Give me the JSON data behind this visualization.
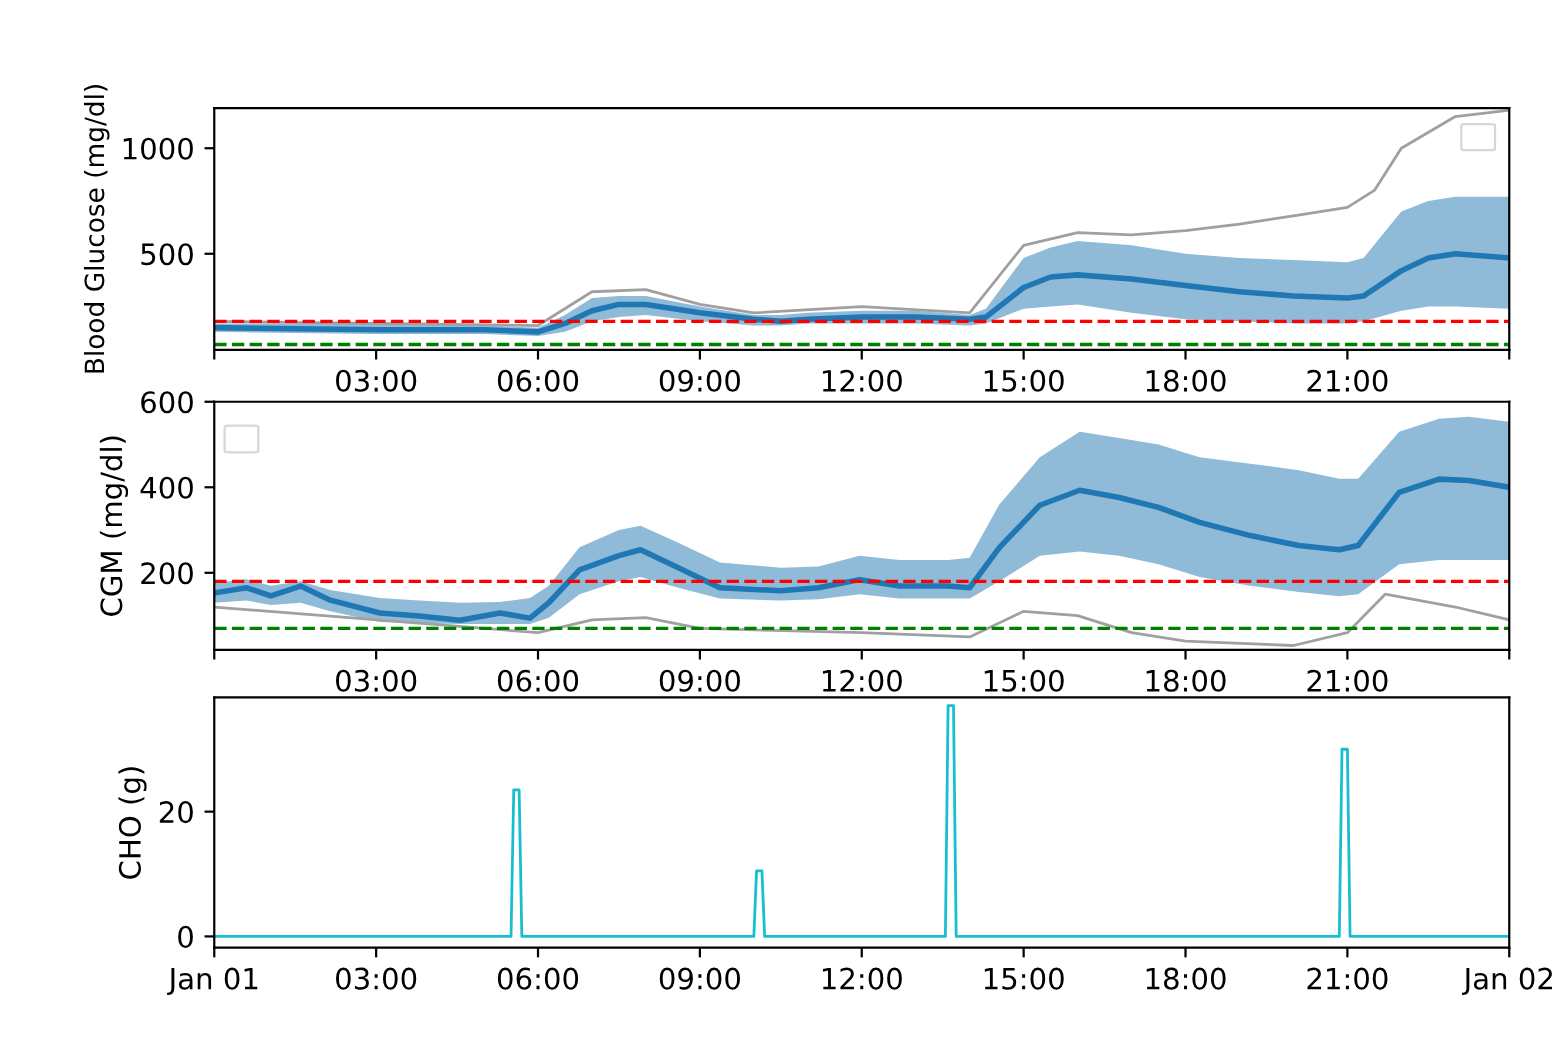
{
  "chart_data": [
    {
      "type": "line",
      "ylabel": "Blood Glucose (mg/dl)",
      "xlim": [
        0,
        24
      ],
      "ylim": [
        45,
        1190
      ],
      "yticks": [
        500,
        1000
      ],
      "xticks": [
        {
          "value": 0,
          "label": null
        },
        {
          "value": 3,
          "label": "03:00"
        },
        {
          "value": 6,
          "label": "06:00"
        },
        {
          "value": 9,
          "label": "09:00"
        },
        {
          "value": 12,
          "label": "12:00"
        },
        {
          "value": 15,
          "label": "15:00"
        },
        {
          "value": 18,
          "label": "18:00"
        },
        {
          "value": 21,
          "label": "21:00"
        },
        {
          "value": 24,
          "label": null
        }
      ],
      "grid": false,
      "ref_lines": [
        {
          "axis": "y",
          "value": 180,
          "color": "#ff0000",
          "line_style": "dashed"
        },
        {
          "axis": "y",
          "value": 70,
          "color": "#008000",
          "line_style": "dashed"
        }
      ],
      "series": [
        {
          "color": "#a0a0a0",
          "x": [
            0,
            6,
            7,
            8,
            9,
            10,
            12,
            14,
            15,
            16,
            17,
            18,
            19,
            20,
            21,
            21.5,
            22,
            23,
            24
          ],
          "values": [
            180,
            160,
            320,
            330,
            260,
            220,
            250,
            220,
            540,
            600,
            590,
            610,
            640,
            680,
            720,
            800,
            1000,
            1150,
            1180
          ]
        },
        {
          "color": "#1f77b4",
          "x": [
            0,
            3,
            5,
            6,
            6.5,
            7,
            7.5,
            8,
            9,
            10,
            10.5,
            11,
            12,
            13,
            14,
            14.3,
            15,
            15.5,
            16,
            17,
            18,
            19,
            20,
            21,
            21.3,
            22,
            22.5,
            23,
            24
          ],
          "values": [
            150,
            140,
            140,
            130,
            170,
            230,
            260,
            260,
            220,
            190,
            180,
            190,
            200,
            200,
            190,
            200,
            340,
            390,
            400,
            380,
            350,
            320,
            300,
            290,
            300,
            420,
            480,
            500,
            480
          ],
          "lower": [
            130,
            120,
            120,
            110,
            130,
            180,
            200,
            210,
            180,
            160,
            160,
            170,
            170,
            170,
            160,
            170,
            240,
            250,
            260,
            220,
            190,
            180,
            170,
            170,
            180,
            230,
            250,
            250,
            240
          ],
          "upper": [
            170,
            170,
            160,
            150,
            210,
            290,
            300,
            300,
            250,
            210,
            210,
            220,
            230,
            230,
            210,
            240,
            480,
            530,
            560,
            540,
            500,
            480,
            470,
            460,
            480,
            700,
            750,
            770,
            770
          ]
        }
      ]
    },
    {
      "type": "line",
      "ylabel": "CGM (mg/dl)",
      "xlim": [
        0,
        24
      ],
      "ylim": [
        20,
        600
      ],
      "yticks": [
        200,
        400,
        600
      ],
      "xticks": [
        {
          "value": 0,
          "label": null
        },
        {
          "value": 3,
          "label": "03:00"
        },
        {
          "value": 6,
          "label": "06:00"
        },
        {
          "value": 9,
          "label": "09:00"
        },
        {
          "value": 12,
          "label": "12:00"
        },
        {
          "value": 15,
          "label": "15:00"
        },
        {
          "value": 18,
          "label": "18:00"
        },
        {
          "value": 21,
          "label": "21:00"
        },
        {
          "value": 24,
          "label": null
        }
      ],
      "grid": false,
      "ref_lines": [
        {
          "axis": "y",
          "value": 180,
          "color": "#ff0000",
          "line_style": "dashed"
        },
        {
          "axis": "y",
          "value": 70,
          "color": "#008000",
          "line_style": "dashed"
        }
      ],
      "series": [
        {
          "color": "#a0a0a0",
          "x": [
            0,
            6,
            7,
            8,
            9,
            12,
            14,
            15,
            16,
            17,
            18,
            20,
            21,
            21.7,
            23,
            24
          ],
          "values": [
            120,
            60,
            90,
            95,
            70,
            60,
            50,
            110,
            100,
            60,
            40,
            30,
            60,
            150,
            120,
            90
          ]
        },
        {
          "color": "#1f77b4",
          "x": [
            0,
            0.6,
            1.05,
            1.6,
            2.15,
            3.07,
            3.8,
            4.55,
            5.3,
            5.85,
            6.2,
            6.77,
            7.5,
            7.9,
            8.6,
            9.37,
            10.5,
            11.2,
            11.96,
            12.7,
            13.6,
            14,
            14.55,
            15.3,
            16.04,
            16.77,
            17.5,
            18.26,
            19.2,
            20.1,
            20.85,
            21.2,
            21.96,
            22.7,
            23.25,
            24
          ],
          "values": [
            153,
            165,
            146,
            169,
            136,
            106,
            99,
            89,
            106,
            94,
            130,
            207,
            240,
            254,
            212,
            165,
            158,
            165,
            184,
            169,
            169,
            165,
            259,
            358,
            393,
            376,
            353,
            318,
            287,
            264,
            254,
            264,
            388,
            419,
            416,
            400
          ],
          "lower": [
            130,
            135,
            125,
            130,
            110,
            85,
            82,
            80,
            80,
            80,
            95,
            150,
            180,
            190,
            165,
            140,
            135,
            138,
            150,
            140,
            140,
            140,
            180,
            240,
            250,
            240,
            220,
            190,
            170,
            155,
            145,
            150,
            220,
            230,
            230,
            230
          ],
          "upper": [
            176,
            185,
            170,
            180,
            160,
            141,
            135,
            130,
            132,
            141,
            170,
            260,
            300,
            310,
            270,
            224,
            212,
            215,
            240,
            230,
            230,
            235,
            360,
            470,
            530,
            515,
            500,
            470,
            455,
            440,
            420,
            420,
            530,
            560,
            565,
            553
          ]
        }
      ]
    },
    {
      "type": "line",
      "ylabel": "CHO (g)",
      "xlim": [
        0,
        24
      ],
      "ylim": [
        -1.8,
        38.3
      ],
      "yticks": [
        0,
        20
      ],
      "xticks": [
        {
          "value": 0,
          "label": "Jan 01"
        },
        {
          "value": 3,
          "label": "03:00"
        },
        {
          "value": 6,
          "label": "06:00"
        },
        {
          "value": 9,
          "label": "09:00"
        },
        {
          "value": 12,
          "label": "12:00"
        },
        {
          "value": 15,
          "label": "15:00"
        },
        {
          "value": 18,
          "label": "18:00"
        },
        {
          "value": 21,
          "label": "21:00"
        },
        {
          "value": 24,
          "label": "Jan 02"
        }
      ],
      "grid": false,
      "series": [
        {
          "color": "#17becf",
          "x": [
            0,
            5.5,
            5.55,
            5.65,
            5.7,
            10.0,
            10.05,
            10.15,
            10.2,
            13.55,
            13.6,
            13.7,
            13.75,
            20.85,
            20.9,
            21.0,
            21.05,
            24
          ],
          "values": [
            0,
            0,
            23.5,
            23.5,
            0,
            0,
            10.5,
            10.5,
            0,
            0,
            37,
            37,
            0,
            0,
            30,
            30,
            0,
            0
          ]
        }
      ]
    }
  ]
}
